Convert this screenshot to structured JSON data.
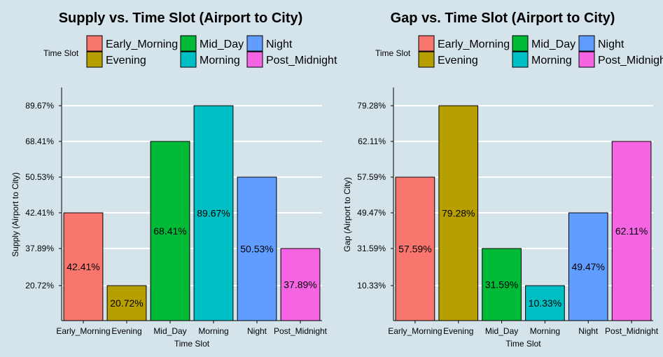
{
  "chart_data": [
    {
      "type": "bar",
      "title": "Supply vs. Time Slot (Airport to City)",
      "xlabel": "Time Slot",
      "ylabel": "Supply (Airport to City)",
      "legend": {
        "title": "Time Slot",
        "position": "top",
        "entries": [
          {
            "label": "Early_Morning",
            "color": "#f8766d"
          },
          {
            "label": "Mid_Day",
            "color": "#00ba38"
          },
          {
            "label": "Night",
            "color": "#619cff"
          },
          {
            "label": "Evening",
            "color": "#b79f00"
          },
          {
            "label": "Morning",
            "color": "#00bfc4"
          },
          {
            "label": "Post_Midnight",
            "color": "#f564e3"
          }
        ]
      },
      "categories": [
        "Early_Morning",
        "Evening",
        "Mid_Day",
        "Morning",
        "Night",
        "Post_Midnight"
      ],
      "colors": [
        "#f8766d",
        "#b79f00",
        "#00ba38",
        "#00bfc4",
        "#619cff",
        "#f564e3"
      ],
      "values": [
        42.41,
        20.72,
        68.41,
        89.67,
        50.53,
        37.89
      ],
      "data_labels": [
        "42.41%",
        "20.72%",
        "68.41%",
        "89.67%",
        "50.53%",
        "37.89%"
      ],
      "y_axis": "discrete",
      "y_ticks": [
        "20.72%",
        "37.89%",
        "42.41%",
        "50.53%",
        "68.41%",
        "89.67%"
      ],
      "grid": true
    },
    {
      "type": "bar",
      "title": "Gap vs. Time Slot (Airport to City)",
      "xlabel": "Time Slot",
      "ylabel": "Gap (Airport to City)",
      "legend": {
        "title": "Time Slot",
        "position": "top",
        "entries": [
          {
            "label": "Early_Morning",
            "color": "#f8766d"
          },
          {
            "label": "Mid_Day",
            "color": "#00ba38"
          },
          {
            "label": "Night",
            "color": "#619cff"
          },
          {
            "label": "Evening",
            "color": "#b79f00"
          },
          {
            "label": "Morning",
            "color": "#00bfc4"
          },
          {
            "label": "Post_Midnight",
            "color": "#f564e3"
          }
        ]
      },
      "categories": [
        "Early_Morning",
        "Evening",
        "Mid_Day",
        "Morning",
        "Night",
        "Post_Midnight"
      ],
      "colors": [
        "#f8766d",
        "#b79f00",
        "#00ba38",
        "#00bfc4",
        "#619cff",
        "#f564e3"
      ],
      "values": [
        57.59,
        79.28,
        31.59,
        10.33,
        49.47,
        62.11
      ],
      "data_labels": [
        "57.59%",
        "79.28%",
        "31.59%",
        "10.33%",
        "49.47%",
        "62.11%"
      ],
      "y_axis": "discrete",
      "y_ticks": [
        "10.33%",
        "31.59%",
        "49.47%",
        "57.59%",
        "62.11%",
        "79.28%"
      ],
      "grid": true
    }
  ]
}
